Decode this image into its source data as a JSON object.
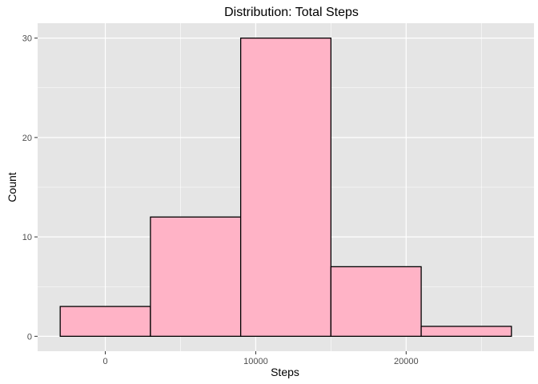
{
  "chart_data": {
    "type": "bar",
    "title": "Distribution: Total Steps",
    "xlabel": "Steps",
    "ylabel": "Count",
    "bin_width": 6000,
    "bins": [
      {
        "start": -3000,
        "end": 3000,
        "count": 3
      },
      {
        "start": 3000,
        "end": 9000,
        "count": 12
      },
      {
        "start": 9000,
        "end": 15000,
        "count": 30
      },
      {
        "start": 15000,
        "end": 21000,
        "count": 7
      },
      {
        "start": 21000,
        "end": 27000,
        "count": 1
      }
    ],
    "x_ticks": [
      0,
      10000,
      20000
    ],
    "x_tick_labels": [
      "0",
      "10000",
      "20000"
    ],
    "y_ticks": [
      0,
      10,
      20,
      30
    ],
    "y_tick_labels": [
      "0",
      "10",
      "20",
      "30"
    ],
    "xlim": [
      -4500,
      28500
    ],
    "ylim": [
      -1.5,
      31.5
    ],
    "grid": true,
    "colors": {
      "panel_background": "#e5e5e5",
      "grid": "#ffffff",
      "bar_fill": "#ffb3c6",
      "bar_outline": "#000000"
    }
  }
}
